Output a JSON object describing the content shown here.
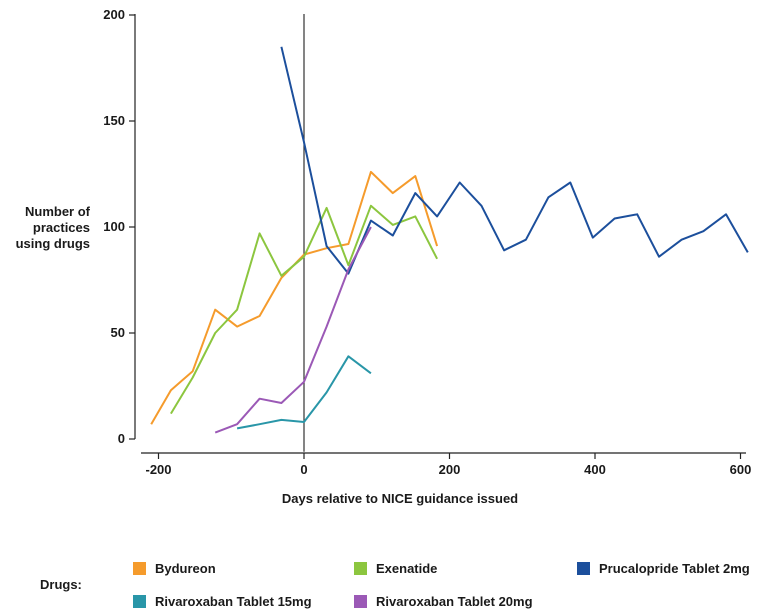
{
  "chart_data": {
    "type": "line",
    "title": "",
    "ylabel_lines": [
      "Number of",
      "practices",
      "using drugs"
    ],
    "xlabel": "Days relative to NICE guidance issued",
    "xlim": [
      -210,
      610
    ],
    "ylim": [
      0,
      200
    ],
    "xticks": [
      -200,
      0,
      200,
      400,
      600
    ],
    "yticks": [
      0,
      50,
      100,
      150,
      200
    ],
    "reference_line_x": 0,
    "grid": false,
    "legend_title": "Drugs:",
    "legend_placement": "bottom",
    "series": [
      {
        "name": "Bydureon",
        "color": "#f59b2c",
        "x": [
          -210,
          -183,
          -153,
          -122,
          -92,
          -61,
          -31,
          0,
          31,
          61,
          92,
          122,
          153,
          183
        ],
        "y": [
          7,
          23,
          32,
          61,
          53,
          58,
          76,
          87,
          90,
          92,
          126,
          116,
          124,
          91
        ]
      },
      {
        "name": "Exenatide",
        "color": "#8cc63f",
        "x": [
          -183,
          -153,
          -122,
          -92,
          -61,
          -31,
          0,
          31,
          61,
          92,
          122,
          153,
          183
        ],
        "y": [
          12,
          29,
          50,
          61,
          97,
          77,
          86,
          109,
          82,
          110,
          101,
          105,
          85
        ]
      },
      {
        "name": "Prucalopride Tablet 2mg",
        "color": "#1c4f9c",
        "x": [
          -31,
          0,
          31,
          61,
          92,
          122,
          153,
          183,
          214,
          244,
          275,
          305,
          336,
          366,
          397,
          427,
          458,
          488,
          519,
          549,
          580,
          610
        ],
        "y": [
          185,
          140,
          91,
          78,
          103,
          96,
          116,
          105,
          121,
          110,
          89,
          94,
          114,
          121,
          95,
          104,
          106,
          86,
          94,
          98,
          106,
          88
        ]
      },
      {
        "name": "Rivaroxaban Tablet 15mg",
        "color": "#2996a8",
        "x": [
          -92,
          -61,
          -31,
          0,
          31,
          61,
          92
        ],
        "y": [
          5,
          7,
          9,
          8,
          22,
          39,
          31
        ]
      },
      {
        "name": "Rivaroxaban Tablet 20mg",
        "color": "#9b59b6",
        "x": [
          -122,
          -92,
          -61,
          -31,
          0,
          31,
          61,
          92
        ],
        "y": [
          3,
          7,
          19,
          17,
          27,
          53,
          80,
          100
        ]
      }
    ]
  }
}
